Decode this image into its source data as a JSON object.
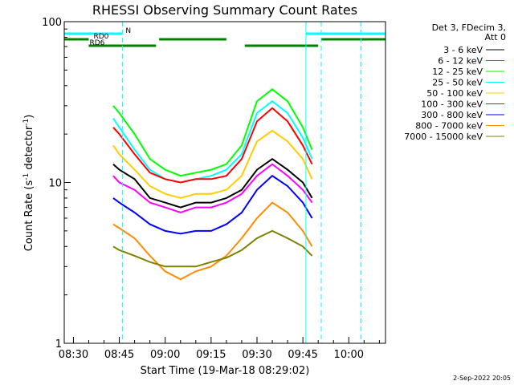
{
  "chart_data": {
    "type": "line",
    "title": "RHESSI Observing Summary Count Rates",
    "xlabel": "Start Time (19-Mar-18 08:29:02)",
    "ylabel_parts": [
      "Count Rate (s",
      "-1",
      " detector",
      "-1",
      ")"
    ],
    "ylabel": "Count Rate (s-1 detector-1)",
    "yscale": "log",
    "ylim": [
      1,
      100
    ],
    "y_ticks": [
      "1",
      "10",
      "100"
    ],
    "xlim": [
      "08:27",
      "10:12"
    ],
    "x_ticks": [
      "08:30",
      "08:45",
      "09:00",
      "09:15",
      "09:30",
      "09:45",
      "10:00"
    ],
    "legend_header": [
      "Det 3, FDecim 3,",
      "Att 0"
    ],
    "legend_position": "right",
    "series": [
      {
        "name": "3 - 6 keV",
        "color": "#000000",
        "points": [
          [
            "08:43",
            13
          ],
          [
            "08:45",
            12
          ],
          [
            "08:50",
            10.5
          ],
          [
            "08:55",
            8
          ],
          [
            "09:00",
            7.5
          ],
          [
            "09:05",
            7
          ],
          [
            "09:10",
            7.5
          ],
          [
            "09:15",
            7.5
          ],
          [
            "09:20",
            8
          ],
          [
            "09:25",
            9
          ],
          [
            "09:30",
            12
          ],
          [
            "09:35",
            14
          ],
          [
            "09:40",
            12
          ],
          [
            "09:45",
            10
          ],
          [
            "09:48",
            8
          ]
        ]
      },
      {
        "name": "6 - 12 keV",
        "color": "#ff00ff",
        "points": [
          [
            "08:43",
            11
          ],
          [
            "08:45",
            10
          ],
          [
            "08:50",
            9
          ],
          [
            "08:55",
            7.5
          ],
          [
            "09:00",
            7
          ],
          [
            "09:05",
            6.5
          ],
          [
            "09:10",
            7
          ],
          [
            "09:15",
            7
          ],
          [
            "09:20",
            7.5
          ],
          [
            "09:25",
            8.5
          ],
          [
            "09:30",
            11
          ],
          [
            "09:35",
            13
          ],
          [
            "09:40",
            11
          ],
          [
            "09:45",
            9
          ],
          [
            "09:48",
            7.5
          ]
        ]
      },
      {
        "name": "12 - 25 keV",
        "color": "#00ff00",
        "points": [
          [
            "08:43",
            30
          ],
          [
            "08:45",
            27
          ],
          [
            "08:50",
            20
          ],
          [
            "08:55",
            14
          ],
          [
            "09:00",
            12
          ],
          [
            "09:05",
            11
          ],
          [
            "09:10",
            11.5
          ],
          [
            "09:15",
            12
          ],
          [
            "09:20",
            13
          ],
          [
            "09:25",
            17
          ],
          [
            "09:30",
            32
          ],
          [
            "09:35",
            38
          ],
          [
            "09:40",
            32
          ],
          [
            "09:45",
            22
          ],
          [
            "09:48",
            16
          ]
        ]
      },
      {
        "name": "25 - 50 keV",
        "color": "#00ffff",
        "points": [
          [
            "08:43",
            25
          ],
          [
            "08:45",
            22
          ],
          [
            "08:50",
            16
          ],
          [
            "08:55",
            12
          ],
          [
            "09:00",
            10.5
          ],
          [
            "09:05",
            10
          ],
          [
            "09:10",
            10.5
          ],
          [
            "09:15",
            11
          ],
          [
            "09:20",
            12
          ],
          [
            "09:25",
            15
          ],
          [
            "09:30",
            27
          ],
          [
            "09:35",
            32
          ],
          [
            "09:40",
            27
          ],
          [
            "09:45",
            19
          ],
          [
            "09:48",
            14
          ]
        ]
      },
      {
        "name": "50 - 100 keV",
        "color": "#ffcc00",
        "points": [
          [
            "08:43",
            17
          ],
          [
            "08:45",
            15
          ],
          [
            "08:50",
            12
          ],
          [
            "08:55",
            9.5
          ],
          [
            "09:00",
            8.5
          ],
          [
            "09:05",
            8
          ],
          [
            "09:10",
            8.5
          ],
          [
            "09:15",
            8.5
          ],
          [
            "09:20",
            9
          ],
          [
            "09:25",
            11
          ],
          [
            "09:30",
            18
          ],
          [
            "09:35",
            21
          ],
          [
            "09:40",
            18
          ],
          [
            "09:45",
            14
          ],
          [
            "09:48",
            10.5
          ]
        ]
      },
      {
        "name": "100 - 300 keV",
        "color": "#ff0000",
        "points": [
          [
            "08:43",
            22
          ],
          [
            "08:45",
            20
          ],
          [
            "08:50",
            15
          ],
          [
            "08:55",
            11.5
          ],
          [
            "09:00",
            10.5
          ],
          [
            "09:05",
            10
          ],
          [
            "09:10",
            10.5
          ],
          [
            "09:15",
            10.5
          ],
          [
            "09:20",
            11
          ],
          [
            "09:25",
            14
          ],
          [
            "09:30",
            24
          ],
          [
            "09:35",
            29
          ],
          [
            "09:40",
            24
          ],
          [
            "09:45",
            17
          ],
          [
            "09:48",
            13
          ]
        ]
      },
      {
        "name": "300 - 800 keV",
        "color": "#0000ff",
        "points": [
          [
            "08:43",
            8
          ],
          [
            "08:45",
            7.5
          ],
          [
            "08:50",
            6.5
          ],
          [
            "08:55",
            5.5
          ],
          [
            "09:00",
            5
          ],
          [
            "09:05",
            4.8
          ],
          [
            "09:10",
            5
          ],
          [
            "09:15",
            5
          ],
          [
            "09:20",
            5.5
          ],
          [
            "09:25",
            6.5
          ],
          [
            "09:30",
            9
          ],
          [
            "09:35",
            11
          ],
          [
            "09:40",
            9.5
          ],
          [
            "09:45",
            7.5
          ],
          [
            "09:48",
            6
          ]
        ]
      },
      {
        "name": "800 - 7000 keV",
        "color": "#ff8c00",
        "points": [
          [
            "08:43",
            5.5
          ],
          [
            "08:45",
            5.2
          ],
          [
            "08:50",
            4.5
          ],
          [
            "08:55",
            3.5
          ],
          [
            "09:00",
            2.8
          ],
          [
            "09:05",
            2.5
          ],
          [
            "09:10",
            2.8
          ],
          [
            "09:15",
            3
          ],
          [
            "09:20",
            3.5
          ],
          [
            "09:25",
            4.5
          ],
          [
            "09:30",
            6
          ],
          [
            "09:35",
            7.5
          ],
          [
            "09:40",
            6.5
          ],
          [
            "09:45",
            5
          ],
          [
            "09:48",
            4
          ]
        ]
      },
      {
        "name": "7000 - 15000 keV",
        "color": "#808000",
        "points": [
          [
            "08:43",
            4
          ],
          [
            "08:45",
            3.8
          ],
          [
            "08:50",
            3.5
          ],
          [
            "08:55",
            3.2
          ],
          [
            "09:00",
            3
          ],
          [
            "09:05",
            3
          ],
          [
            "09:10",
            3
          ],
          [
            "09:15",
            3.2
          ],
          [
            "09:20",
            3.4
          ],
          [
            "09:25",
            3.8
          ],
          [
            "09:30",
            4.5
          ],
          [
            "09:35",
            5
          ],
          [
            "09:40",
            4.5
          ],
          [
            "09:45",
            4
          ],
          [
            "09:48",
            3.5
          ]
        ]
      }
    ],
    "flags": [
      {
        "label": "N",
        "color": "#00ffff",
        "segments": [
          [
            "08:27",
            "08:46"
          ],
          [
            "09:46",
            "10:12"
          ]
        ]
      },
      {
        "label": "RD0",
        "color": "#008000",
        "segments": [
          [
            "08:27",
            "08:35"
          ],
          [
            "08:58",
            "09:20"
          ],
          [
            "09:51",
            "10:12"
          ]
        ]
      },
      {
        "label": "RD6",
        "color": "#008000",
        "segments": [
          [
            "08:35",
            "08:57"
          ],
          [
            "09:26",
            "09:50"
          ]
        ]
      }
    ],
    "vlines": [
      {
        "time": "08:46",
        "color": "#00ffff",
        "style": "dashed"
      },
      {
        "time": "09:46",
        "color": "#00ffff",
        "style": "solid"
      },
      {
        "time": "09:51",
        "color": "#00ffff",
        "style": "dashed"
      },
      {
        "time": "10:04",
        "color": "#00ffff",
        "style": "dashed"
      }
    ]
  },
  "footer": {
    "timestamp": "2-Sep-2022 20:05"
  }
}
